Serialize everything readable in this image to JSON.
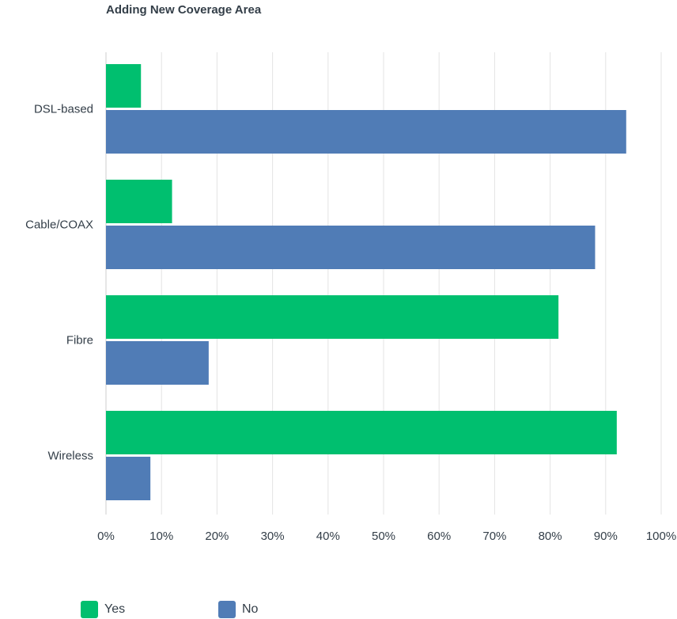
{
  "chart_data": {
    "type": "bar",
    "orientation": "horizontal",
    "title": "Adding New Coverage Area",
    "categories": [
      "DSL-based",
      "Cable/COAX",
      "Fibre",
      "Wireless"
    ],
    "series": [
      {
        "name": "Yes",
        "color": "#00bf6f",
        "values": [
          6.3,
          11.9,
          81.5,
          92.0
        ]
      },
      {
        "name": "No",
        "color": "#507cb6",
        "values": [
          93.7,
          88.1,
          18.5,
          8.0
        ]
      }
    ],
    "xlim": [
      0,
      100
    ],
    "xticks": [
      0,
      10,
      20,
      30,
      40,
      50,
      60,
      70,
      80,
      90,
      100
    ],
    "xtick_labels": [
      "0%",
      "10%",
      "20%",
      "30%",
      "40%",
      "50%",
      "60%",
      "70%",
      "80%",
      "90%",
      "100%"
    ],
    "grid": true,
    "legend_position": "bottom-left"
  }
}
